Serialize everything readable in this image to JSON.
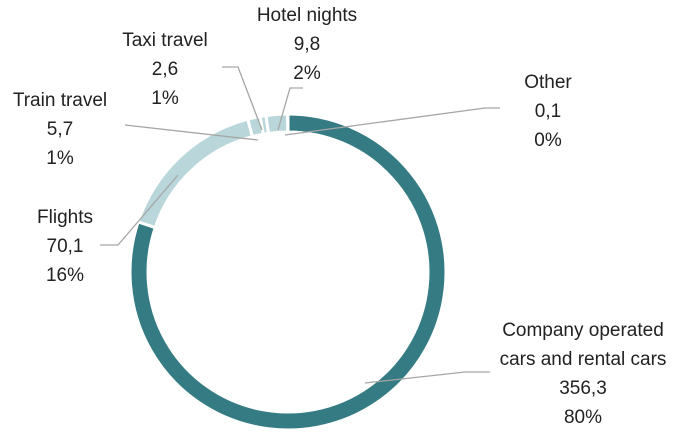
{
  "chart_data": {
    "type": "donut",
    "categories": [
      "Company operated cars and rental cars",
      "Flights",
      "Train travel",
      "Taxi travel",
      "Hotel nights",
      "Other"
    ],
    "values": [
      356.3,
      70.1,
      5.7,
      2.6,
      9.8,
      0.1
    ],
    "value_labels": [
      "356,3",
      "70,1",
      "5,7",
      "2,6",
      "9,8",
      "0,1"
    ],
    "percents": [
      80,
      16,
      1,
      1,
      2,
      0
    ],
    "percent_labels": [
      "80%",
      "16%",
      "1%",
      "1%",
      "2%",
      "0%"
    ],
    "colors": [
      "#357b83",
      "#b9d7da",
      "#b9d7da",
      "#b9d7da",
      "#b9d7da",
      "#b9d7da"
    ]
  }
}
